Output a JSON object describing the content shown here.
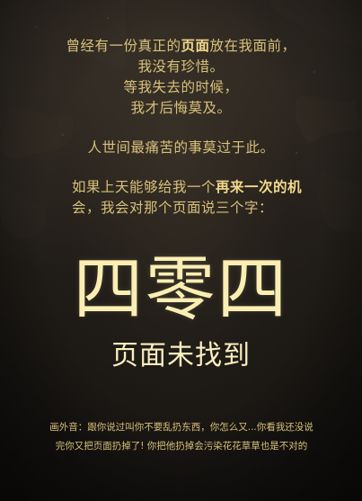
{
  "poem": {
    "stanza1": {
      "line1_prefix": "曾经有一份真正的",
      "line1_bold": "页面",
      "line1_suffix": "放在我面前，",
      "line2": "我没有珍惜。",
      "line3": "等我失去的时候，",
      "line4": "我才后悔莫及。"
    },
    "stanza2": {
      "line1": "人世间最痛苦的事莫过于此。"
    },
    "stanza3": {
      "prefix": "如果上天能够给我一个",
      "bold": "再来一次的机",
      "line2": "会，我会对那个页面说三个字："
    }
  },
  "headline": "四零四",
  "subheadline": "页面未找到",
  "voiceover": "画外音：跟你说过叫你不要乱扔东西，你怎么又...你看我还没说完你又把页面扔掉了! 你把他扔掉会污染花花草草也是不对的",
  "colors": {
    "poem_text": "#d8c07a",
    "headline_text": "#fbeeb3",
    "background": "#1a1713"
  }
}
